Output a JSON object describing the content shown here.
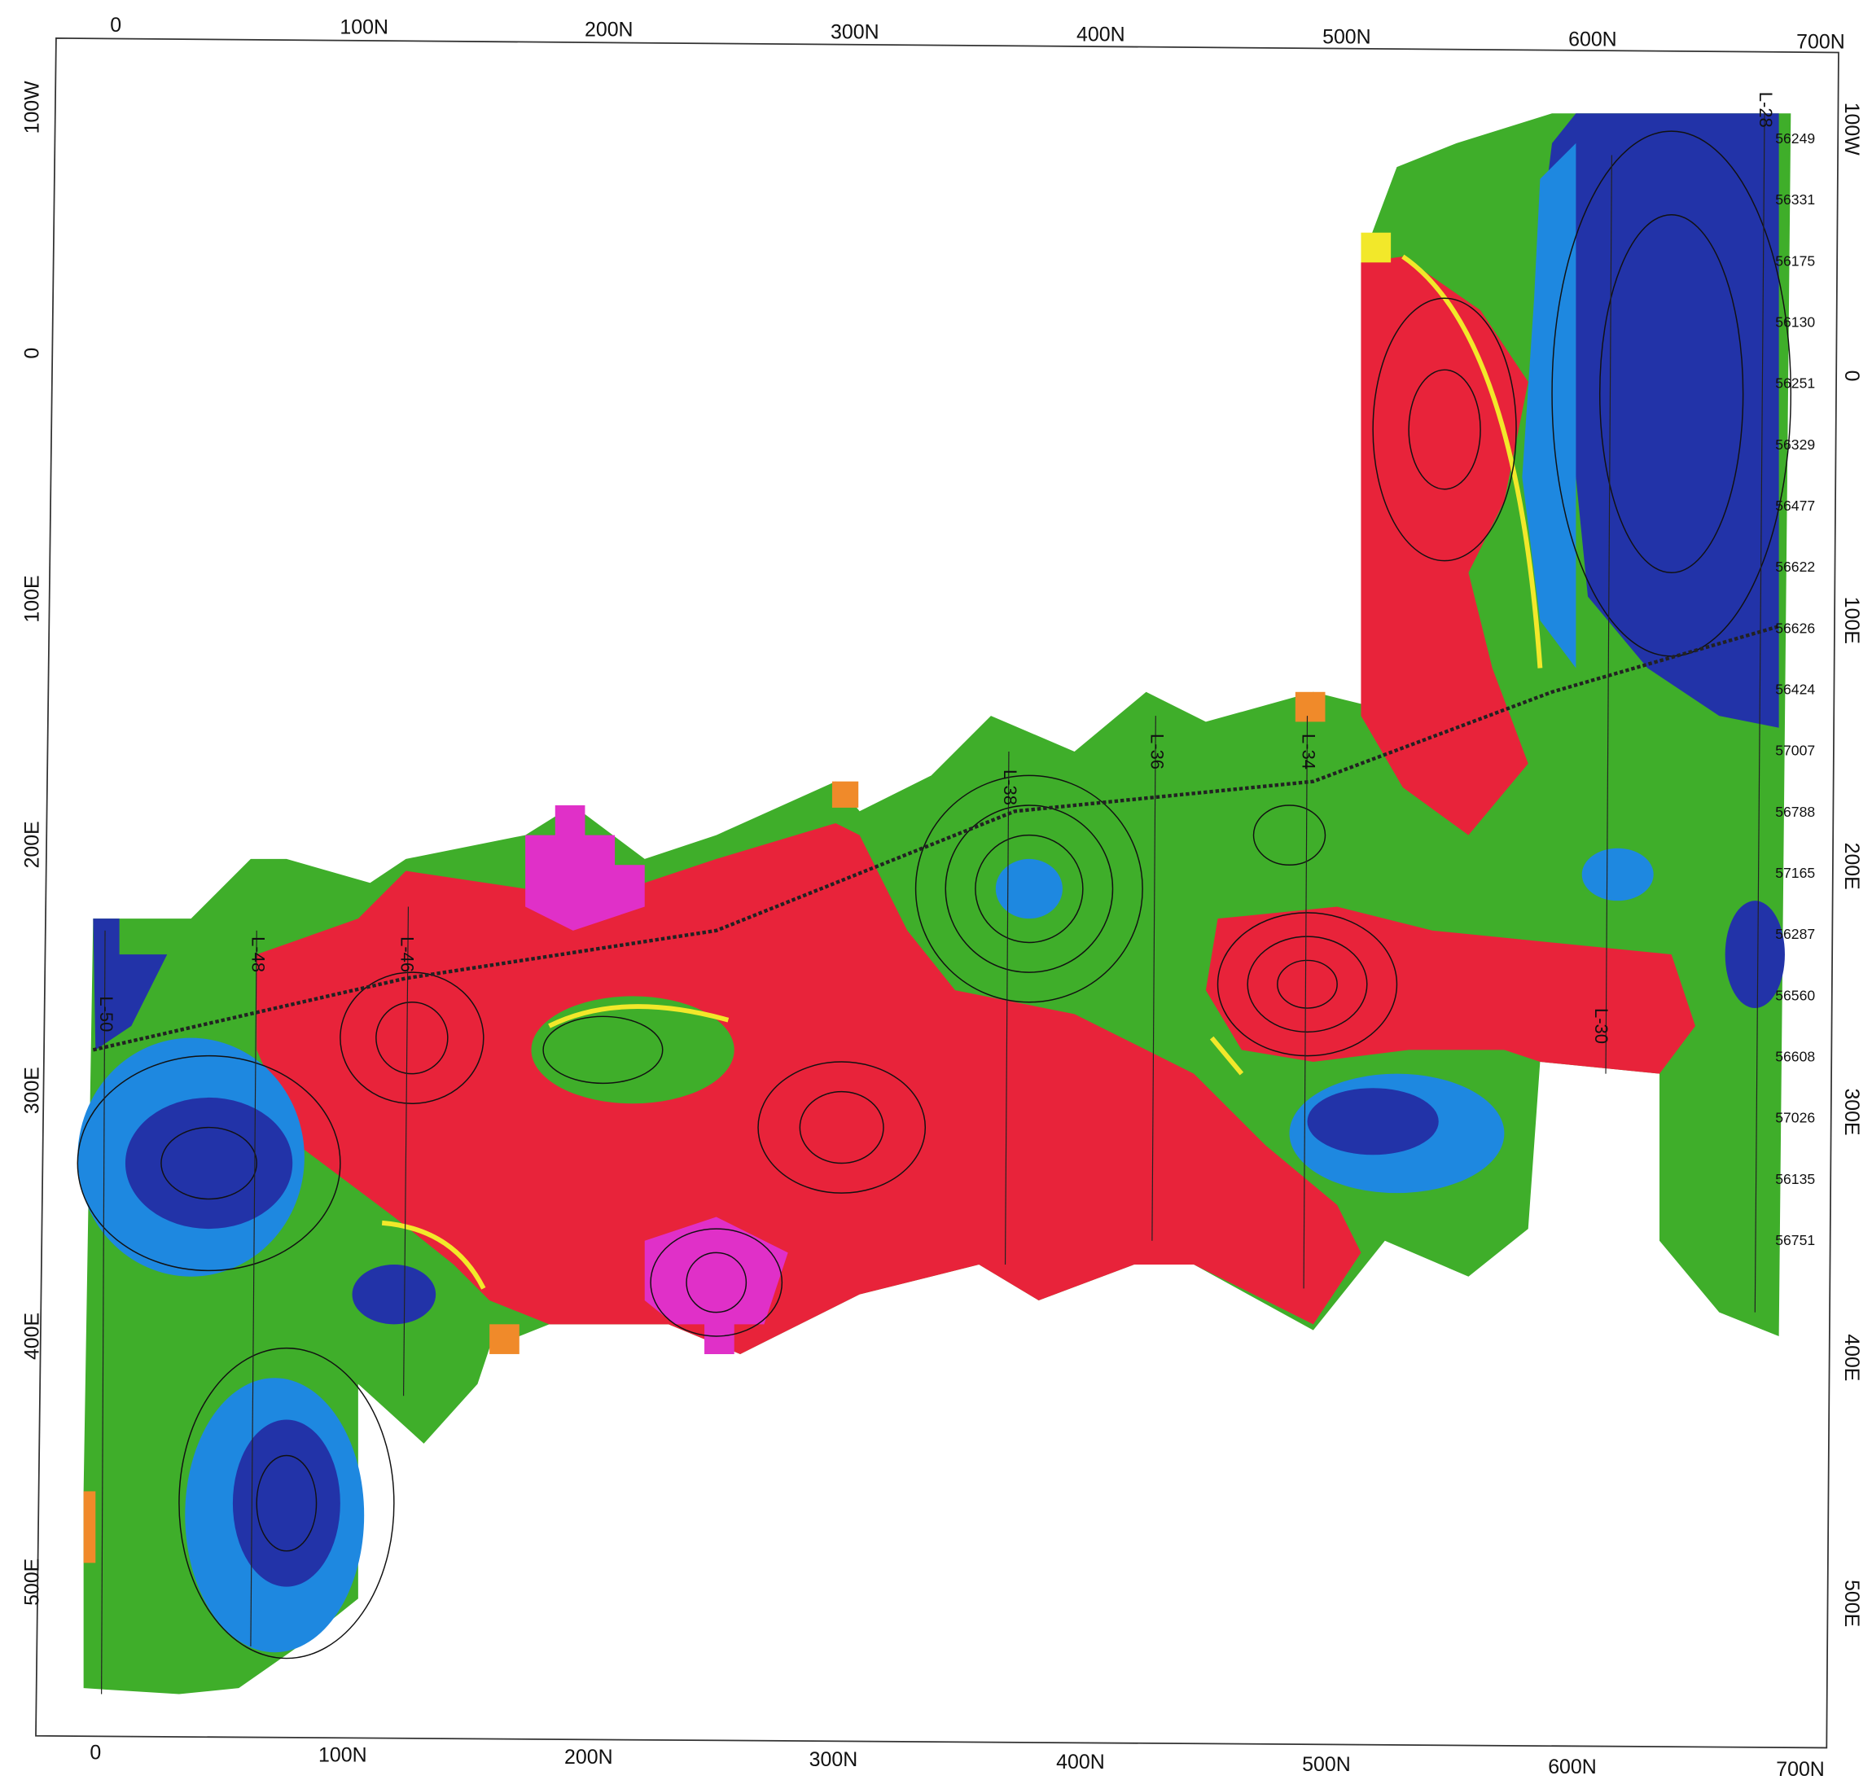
{
  "top_axis": [
    "0",
    "100N",
    "200N",
    "300N",
    "400N",
    "500N",
    "600N",
    "700N"
  ],
  "bottom_axis": [
    "0",
    "100N",
    "200N",
    "300N",
    "400N",
    "500N",
    "600N",
    "700N"
  ],
  "left_axis": [
    "100W",
    "0",
    "100E",
    "200E",
    "300E",
    "400E",
    "500E"
  ],
  "right_axis": [
    "100W",
    "0",
    "100E",
    "200E",
    "300E",
    "400E",
    "500E"
  ],
  "line_labels": [
    "L-50",
    "L-48",
    "L-46",
    "L-38",
    "L-36",
    "L-34",
    "L-30",
    "L-28"
  ],
  "value_column": [
    56249,
    56331,
    56175,
    56130,
    56251,
    56329,
    56477,
    56622,
    56626,
    56424,
    57007,
    56788,
    57165,
    56287,
    56560,
    56608,
    57026,
    56135,
    56751
  ]
}
